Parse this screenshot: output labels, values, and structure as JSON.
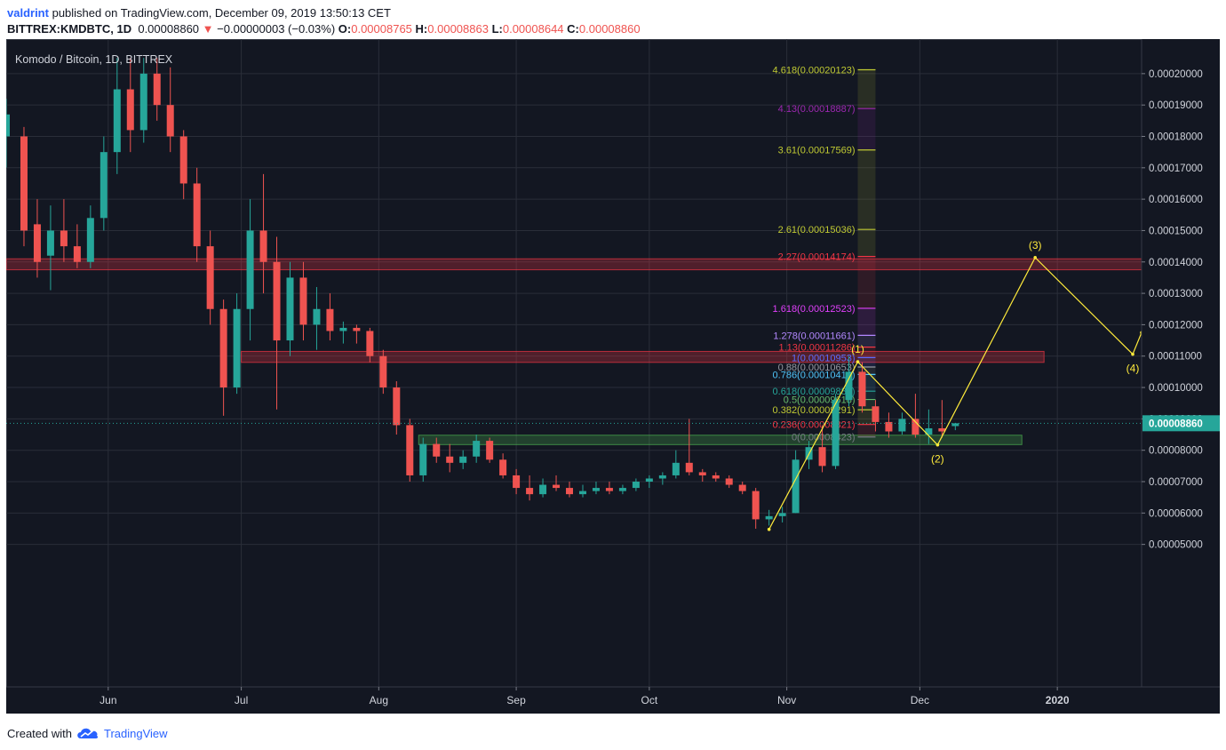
{
  "header": {
    "user": "valdrint",
    "published_text": "published on TradingView.com, December 09, 2019 13:50:13 CET",
    "symbol": "BITTREX:KMDBTC, 1D",
    "price": "0.00008860",
    "change_arrow": "▼",
    "change": "−0.00000003 (−0.03%)",
    "open_label": "O:",
    "open": "0.00008765",
    "high_label": "H:",
    "high": "0.00008863",
    "low_label": "L:",
    "low": "0.00008644",
    "close_label": "C:",
    "close": "0.00008860"
  },
  "footer": {
    "created_with": "Created with",
    "brand": "TradingView"
  },
  "colors": {
    "background": "#131722",
    "up": "#26a69a",
    "down": "#ef5350",
    "grid": "#2a2e39",
    "axis_text": "#d1d4dc",
    "price_line": "#26a69a",
    "wave": "#ffeb3b",
    "support_zone": "#4caf50",
    "resistance_zone": "#f23645"
  },
  "chart_data": {
    "type": "candlestick",
    "title": "Komodo / Bitcoin, 1D, BITTREX",
    "y_axis": {
      "scale": "linear",
      "range": [
        4.6e-06,
        0.000211
      ],
      "ticks": [
        "0.00005000",
        "0.00006000",
        "0.00007000",
        "0.00008000",
        "0.00009000",
        "0.00010000",
        "0.00011000",
        "0.00012000",
        "0.00013000",
        "0.00014000",
        "0.00015000",
        "0.00016000",
        "0.00017000",
        "0.00018000",
        "0.00019000",
        "0.00020000"
      ],
      "tick_values": [
        5e-05,
        6e-05,
        7e-05,
        8e-05,
        9e-05,
        0.0001,
        0.00011,
        0.00012,
        0.00013,
        0.00014,
        0.00015,
        0.00016,
        0.00017,
        0.00018,
        0.00019,
        0.0002
      ],
      "position": "right"
    },
    "x_axis": {
      "range": [
        "2019-05-09",
        "2020-01-20"
      ],
      "labels": [
        {
          "date": "2019-06-01",
          "text": "Jun"
        },
        {
          "date": "2019-07-01",
          "text": "Jul"
        },
        {
          "date": "2019-08-01",
          "text": "Aug"
        },
        {
          "date": "2019-09-01",
          "text": "Sep"
        },
        {
          "date": "2019-10-01",
          "text": "Oct"
        },
        {
          "date": "2019-11-01",
          "text": "Nov"
        },
        {
          "date": "2019-12-01",
          "text": "Dec"
        },
        {
          "date": "2020-01-01",
          "text": "2020"
        }
      ]
    },
    "grid": true,
    "last_price": {
      "value": 8.86e-05,
      "label": "0.00008860"
    },
    "series": [
      {
        "name": "KMDBTC",
        "candles": [
          {
            "date": "2019-05-09",
            "o": 0.00018,
            "h": 0.000192,
            "l": 0.00017,
            "c": 0.000187
          },
          {
            "date": "2019-05-13",
            "o": 0.00018,
            "h": 0.000183,
            "l": 0.000145,
            "c": 0.00015
          },
          {
            "date": "2019-05-16",
            "o": 0.000152,
            "h": 0.00016,
            "l": 0.000135,
            "c": 0.00014
          },
          {
            "date": "2019-05-19",
            "o": 0.000142,
            "h": 0.000158,
            "l": 0.000131,
            "c": 0.00015
          },
          {
            "date": "2019-05-22",
            "o": 0.00015,
            "h": 0.00016,
            "l": 0.00014,
            "c": 0.000145
          },
          {
            "date": "2019-05-25",
            "o": 0.000145,
            "h": 0.000152,
            "l": 0.000138,
            "c": 0.00014
          },
          {
            "date": "2019-05-28",
            "o": 0.00014,
            "h": 0.000158,
            "l": 0.000138,
            "c": 0.000154
          },
          {
            "date": "2019-05-31",
            "o": 0.000154,
            "h": 0.00018,
            "l": 0.00015,
            "c": 0.000175
          },
          {
            "date": "2019-06-03",
            "o": 0.000175,
            "h": 0.000205,
            "l": 0.000168,
            "c": 0.000195
          },
          {
            "date": "2019-06-06",
            "o": 0.000195,
            "h": 0.000205,
            "l": 0.000175,
            "c": 0.000182
          },
          {
            "date": "2019-06-09",
            "o": 0.000182,
            "h": 0.000205,
            "l": 0.000178,
            "c": 0.0002
          },
          {
            "date": "2019-06-12",
            "o": 0.0002,
            "h": 0.000205,
            "l": 0.000185,
            "c": 0.00019
          },
          {
            "date": "2019-06-15",
            "o": 0.00019,
            "h": 0.000202,
            "l": 0.000175,
            "c": 0.00018
          },
          {
            "date": "2019-06-18",
            "o": 0.00018,
            "h": 0.000182,
            "l": 0.00016,
            "c": 0.000165
          },
          {
            "date": "2019-06-21",
            "o": 0.000165,
            "h": 0.00017,
            "l": 0.00014,
            "c": 0.000145
          },
          {
            "date": "2019-06-24",
            "o": 0.000145,
            "h": 0.00015,
            "l": 0.00012,
            "c": 0.000125
          },
          {
            "date": "2019-06-27",
            "o": 0.000125,
            "h": 0.000128,
            "l": 9.1e-05,
            "c": 0.0001
          },
          {
            "date": "2019-06-30",
            "o": 0.0001,
            "h": 0.00013,
            "l": 9.8e-05,
            "c": 0.000125
          },
          {
            "date": "2019-07-03",
            "o": 0.000125,
            "h": 0.00016,
            "l": 0.000115,
            "c": 0.00015
          },
          {
            "date": "2019-07-06",
            "o": 0.00015,
            "h": 0.000168,
            "l": 0.00013,
            "c": 0.00014
          },
          {
            "date": "2019-07-09",
            "o": 0.00014,
            "h": 0.000148,
            "l": 9.3e-05,
            "c": 0.000115
          },
          {
            "date": "2019-07-12",
            "o": 0.000115,
            "h": 0.00014,
            "l": 0.00011,
            "c": 0.000135
          },
          {
            "date": "2019-07-15",
            "o": 0.000135,
            "h": 0.00014,
            "l": 0.000115,
            "c": 0.00012
          },
          {
            "date": "2019-07-18",
            "o": 0.00012,
            "h": 0.000132,
            "l": 0.000112,
            "c": 0.000125
          },
          {
            "date": "2019-07-21",
            "o": 0.000125,
            "h": 0.00013,
            "l": 0.000115,
            "c": 0.000118
          },
          {
            "date": "2019-07-24",
            "o": 0.000118,
            "h": 0.000121,
            "l": 0.000114,
            "c": 0.000119
          },
          {
            "date": "2019-07-27",
            "o": 0.000119,
            "h": 0.00012,
            "l": 0.000114,
            "c": 0.000118
          },
          {
            "date": "2019-07-30",
            "o": 0.000118,
            "h": 0.000119,
            "l": 0.000108,
            "c": 0.00011
          },
          {
            "date": "2019-08-02",
            "o": 0.00011,
            "h": 0.000112,
            "l": 9.8e-05,
            "c": 0.0001
          },
          {
            "date": "2019-08-05",
            "o": 0.0001,
            "h": 0.000102,
            "l": 8.5e-05,
            "c": 8.8e-05
          },
          {
            "date": "2019-08-08",
            "o": 8.8e-05,
            "h": 9e-05,
            "l": 7e-05,
            "c": 7.2e-05
          },
          {
            "date": "2019-08-11",
            "o": 7.2e-05,
            "h": 8.4e-05,
            "l": 7e-05,
            "c": 8.2e-05
          },
          {
            "date": "2019-08-14",
            "o": 8.2e-05,
            "h": 8.4e-05,
            "l": 7.6e-05,
            "c": 7.8e-05
          },
          {
            "date": "2019-08-17",
            "o": 7.8e-05,
            "h": 8.2e-05,
            "l": 7.3e-05,
            "c": 7.6e-05
          },
          {
            "date": "2019-08-20",
            "o": 7.6e-05,
            "h": 8e-05,
            "l": 7.4e-05,
            "c": 7.8e-05
          },
          {
            "date": "2019-08-23",
            "o": 7.8e-05,
            "h": 8.5e-05,
            "l": 7.6e-05,
            "c": 8.3e-05
          },
          {
            "date": "2019-08-26",
            "o": 8.3e-05,
            "h": 8.4e-05,
            "l": 7.6e-05,
            "c": 7.7e-05
          },
          {
            "date": "2019-08-29",
            "o": 7.7e-05,
            "h": 7.9e-05,
            "l": 7.1e-05,
            "c": 7.2e-05
          },
          {
            "date": "2019-09-01",
            "o": 7.2e-05,
            "h": 7.4e-05,
            "l": 6.6e-05,
            "c": 6.8e-05
          },
          {
            "date": "2019-09-04",
            "o": 6.8e-05,
            "h": 7.2e-05,
            "l": 6.4e-05,
            "c": 6.6e-05
          },
          {
            "date": "2019-09-07",
            "o": 6.6e-05,
            "h": 7.1e-05,
            "l": 6.5e-05,
            "c": 6.9e-05
          },
          {
            "date": "2019-09-10",
            "o": 6.9e-05,
            "h": 7.2e-05,
            "l": 6.7e-05,
            "c": 6.8e-05
          },
          {
            "date": "2019-09-13",
            "o": 6.8e-05,
            "h": 7e-05,
            "l": 6.5e-05,
            "c": 6.6e-05
          },
          {
            "date": "2019-09-16",
            "o": 6.6e-05,
            "h": 6.9e-05,
            "l": 6.5e-05,
            "c": 6.7e-05
          },
          {
            "date": "2019-09-19",
            "o": 6.7e-05,
            "h": 7e-05,
            "l": 6.6e-05,
            "c": 6.8e-05
          },
          {
            "date": "2019-09-22",
            "o": 6.8e-05,
            "h": 7e-05,
            "l": 6.6e-05,
            "c": 6.7e-05
          },
          {
            "date": "2019-09-25",
            "o": 6.7e-05,
            "h": 6.9e-05,
            "l": 6.6e-05,
            "c": 6.8e-05
          },
          {
            "date": "2019-09-28",
            "o": 6.8e-05,
            "h": 7.1e-05,
            "l": 6.7e-05,
            "c": 7e-05
          },
          {
            "date": "2019-10-01",
            "o": 7e-05,
            "h": 7.2e-05,
            "l": 6.8e-05,
            "c": 7.1e-05
          },
          {
            "date": "2019-10-04",
            "o": 7.1e-05,
            "h": 7.3e-05,
            "l": 6.9e-05,
            "c": 7.2e-05
          },
          {
            "date": "2019-10-07",
            "o": 7.2e-05,
            "h": 8e-05,
            "l": 7.1e-05,
            "c": 7.6e-05
          },
          {
            "date": "2019-10-10",
            "o": 7.6e-05,
            "h": 9e-05,
            "l": 7.2e-05,
            "c": 7.3e-05
          },
          {
            "date": "2019-10-13",
            "o": 7.3e-05,
            "h": 7.4e-05,
            "l": 7e-05,
            "c": 7.2e-05
          },
          {
            "date": "2019-10-16",
            "o": 7.2e-05,
            "h": 7.3e-05,
            "l": 7e-05,
            "c": 7.1e-05
          },
          {
            "date": "2019-10-19",
            "o": 7.1e-05,
            "h": 7.2e-05,
            "l": 6.8e-05,
            "c": 6.9e-05
          },
          {
            "date": "2019-10-22",
            "o": 6.9e-05,
            "h": 7e-05,
            "l": 6.6e-05,
            "c": 6.7e-05
          },
          {
            "date": "2019-10-25",
            "o": 6.7e-05,
            "h": 6.8e-05,
            "l": 5.5e-05,
            "c": 5.8e-05
          },
          {
            "date": "2019-10-28",
            "o": 5.8e-05,
            "h": 6.1e-05,
            "l": 5.6e-05,
            "c": 5.9e-05
          },
          {
            "date": "2019-10-31",
            "o": 5.9e-05,
            "h": 6.2e-05,
            "l": 5.7e-05,
            "c": 6e-05
          },
          {
            "date": "2019-11-03",
            "o": 6e-05,
            "h": 8e-05,
            "l": 6e-05,
            "c": 7.7e-05
          },
          {
            "date": "2019-11-06",
            "o": 7.7e-05,
            "h": 8.3e-05,
            "l": 7.4e-05,
            "c": 8.1e-05
          },
          {
            "date": "2019-11-09",
            "o": 8.1e-05,
            "h": 8.8e-05,
            "l": 7.3e-05,
            "c": 7.5e-05
          },
          {
            "date": "2019-11-12",
            "o": 7.5e-05,
            "h": 9.8e-05,
            "l": 7.4e-05,
            "c": 9.6e-05
          },
          {
            "date": "2019-11-15",
            "o": 9.6e-05,
            "h": 0.00011,
            "l": 9.4e-05,
            "c": 0.000105
          },
          {
            "date": "2019-11-18",
            "o": 0.000105,
            "h": 0.000108,
            "l": 9.2e-05,
            "c": 9.4e-05
          },
          {
            "date": "2019-11-21",
            "o": 9.4e-05,
            "h": 9.6e-05,
            "l": 8.6e-05,
            "c": 8.9e-05
          },
          {
            "date": "2019-11-24",
            "o": 8.9e-05,
            "h": 9.2e-05,
            "l": 8.4e-05,
            "c": 8.6e-05
          },
          {
            "date": "2019-11-27",
            "o": 8.6e-05,
            "h": 9.2e-05,
            "l": 8.5e-05,
            "c": 9e-05
          },
          {
            "date": "2019-11-30",
            "o": 9e-05,
            "h": 9.8e-05,
            "l": 8.4e-05,
            "c": 8.5e-05
          },
          {
            "date": "2019-12-03",
            "o": 8.5e-05,
            "h": 9.3e-05,
            "l": 8.2e-05,
            "c": 8.7e-05
          },
          {
            "date": "2019-12-06",
            "o": 8.7e-05,
            "h": 9.6e-05,
            "l": 8.4e-05,
            "c": 8.6e-05
          },
          {
            "date": "2019-12-09",
            "o": 8.77e-05,
            "h": 8.86e-05,
            "l": 8.64e-05,
            "c": 8.86e-05
          }
        ]
      }
    ],
    "zones": [
      {
        "kind": "resistance",
        "from": "2019-05-09",
        "to": "2020-01-20",
        "low": 0.0001375,
        "high": 0.000141
      },
      {
        "kind": "resistance",
        "from": "2019-07-01",
        "to": "2019-12-29",
        "low": 0.000108,
        "high": 0.0001115
      },
      {
        "kind": "support",
        "from": "2019-08-10",
        "to": "2019-12-24",
        "low": 8.18e-05,
        "high": 8.48e-05
      }
    ],
    "fibonacci": {
      "from": "2019-11-17",
      "to": "2019-11-21",
      "levels": [
        {
          "ratio": "0",
          "value": "0.00008423",
          "price": 8.423e-05,
          "color": "#787b86"
        },
        {
          "ratio": "0.236",
          "value": "0.00008821",
          "price": 8.821e-05,
          "color": "#f23645"
        },
        {
          "ratio": "0.382",
          "value": "0.00009291",
          "price": 9.291e-05,
          "color": "#c0ca33"
        },
        {
          "ratio": "0.5",
          "value": "0.00009618",
          "price": 9.618e-05,
          "color": "#66bb6a"
        },
        {
          "ratio": "0.618",
          "value": "0.00009883",
          "price": 9.883e-05,
          "color": "#26a69a"
        },
        {
          "ratio": "0.786",
          "value": "0.00010416",
          "price": 0.00010416,
          "color": "#4fc3f7"
        },
        {
          "ratio": "0.88",
          "value": "0.00010653",
          "price": 0.00010653,
          "color": "#9598a1"
        },
        {
          "ratio": "1",
          "value": "0.00010953",
          "price": 0.00010953,
          "color": "#5b6bff"
        },
        {
          "ratio": "1.13",
          "value": "0.00011286",
          "price": 0.00011286,
          "color": "#f23645"
        },
        {
          "ratio": "1.278",
          "value": "0.00011661",
          "price": 0.00011661,
          "color": "#b388ff"
        },
        {
          "ratio": "1.618",
          "value": "0.00012523",
          "price": 0.00012523,
          "color": "#e040fb"
        },
        {
          "ratio": "2.27",
          "value": "0.00014174",
          "price": 0.00014174,
          "color": "#f23645"
        },
        {
          "ratio": "2.61",
          "value": "0.00015036",
          "price": 0.00015036,
          "color": "#c0ca33"
        },
        {
          "ratio": "3.61",
          "value": "0.00017569",
          "price": 0.00017569,
          "color": "#c0ca33"
        },
        {
          "ratio": "4.13",
          "value": "0.00018887",
          "price": 0.00018887,
          "color": "#9c27b0"
        },
        {
          "ratio": "4.618",
          "value": "0.00020123",
          "price": 0.00020123,
          "color": "#c0ca33"
        }
      ]
    },
    "wave_path": [
      {
        "date": "2019-10-28",
        "price": 5.48e-05,
        "label": ""
      },
      {
        "date": "2019-11-17",
        "price": 0.0001082,
        "label": "(1)"
      },
      {
        "date": "2019-12-05",
        "price": 8.17e-05,
        "label": "(2)"
      },
      {
        "date": "2019-12-27",
        "price": 0.0001414,
        "label": "(3)"
      },
      {
        "date": "2020-01-18",
        "price": 0.0001106,
        "label": "(4)"
      },
      {
        "date": "2020-01-20",
        "price": 0.0001175,
        "label": ""
      }
    ]
  }
}
